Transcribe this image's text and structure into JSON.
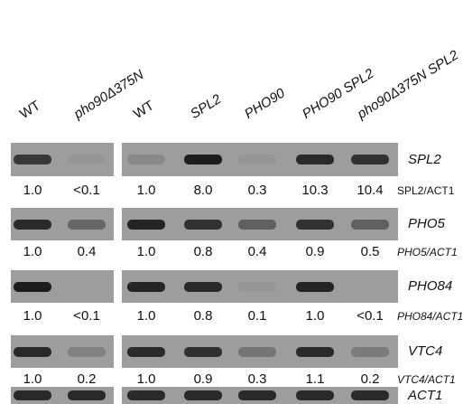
{
  "left_lanes": [
    "WT",
    "pho90Δ375N"
  ],
  "right_lanes": [
    "WT",
    "SPL2",
    "PHO90",
    "PHO90 SPL2",
    "pho90Δ375N SPL2"
  ],
  "rows": [
    {
      "gene": "SPL2",
      "band_intensity_left": [
        0.75,
        0.05
      ],
      "band_intensity_right": [
        0.15,
        0.95,
        0.05,
        0.85,
        0.8
      ],
      "ratio_label": "SPL2/ACT1",
      "ratio_italic": false,
      "ratios_left": [
        "1.0",
        "<0.1"
      ],
      "ratios_right": [
        "1.0",
        "8.0",
        "0.3",
        "10.3",
        "10.4"
      ]
    },
    {
      "gene": "PHO5",
      "band_intensity_left": [
        0.85,
        0.4
      ],
      "band_intensity_right": [
        0.9,
        0.8,
        0.45,
        0.8,
        0.45
      ],
      "ratio_label": "PHO5/ACT1",
      "ratio_italic": true,
      "ratios_left": [
        "1.0",
        "0.4"
      ],
      "ratios_right": [
        "1.0",
        "0.8",
        "0.4",
        "0.9",
        "0.5"
      ]
    },
    {
      "gene": "PHO84",
      "band_intensity_left": [
        0.95,
        0.0
      ],
      "band_intensity_right": [
        0.9,
        0.85,
        0.05,
        0.9,
        0.0
      ],
      "ratio_label": "PHO84/ACT1",
      "ratio_italic": true,
      "ratios_left": [
        "1.0",
        "<0.1"
      ],
      "ratios_right": [
        "1.0",
        "0.8",
        "0.1",
        "1.0",
        "<0.1"
      ]
    },
    {
      "gene": "VTC4",
      "band_intensity_left": [
        0.85,
        0.2
      ],
      "band_intensity_right": [
        0.85,
        0.8,
        0.3,
        0.85,
        0.25
      ],
      "ratio_label": "VTC4/ACT1",
      "ratio_italic": true,
      "ratios_left": [
        "1.0",
        "0.2"
      ],
      "ratios_right": [
        "1.0",
        "0.9",
        "0.3",
        "1.1",
        "0.2"
      ]
    },
    {
      "gene": "ACT1",
      "band_intensity_left": [
        0.85,
        0.85
      ],
      "band_intensity_right": [
        0.85,
        0.85,
        0.85,
        0.85,
        0.85
      ]
    }
  ],
  "colors": {
    "gel_background": "#9d9d9d",
    "band_dark": "#161616"
  }
}
